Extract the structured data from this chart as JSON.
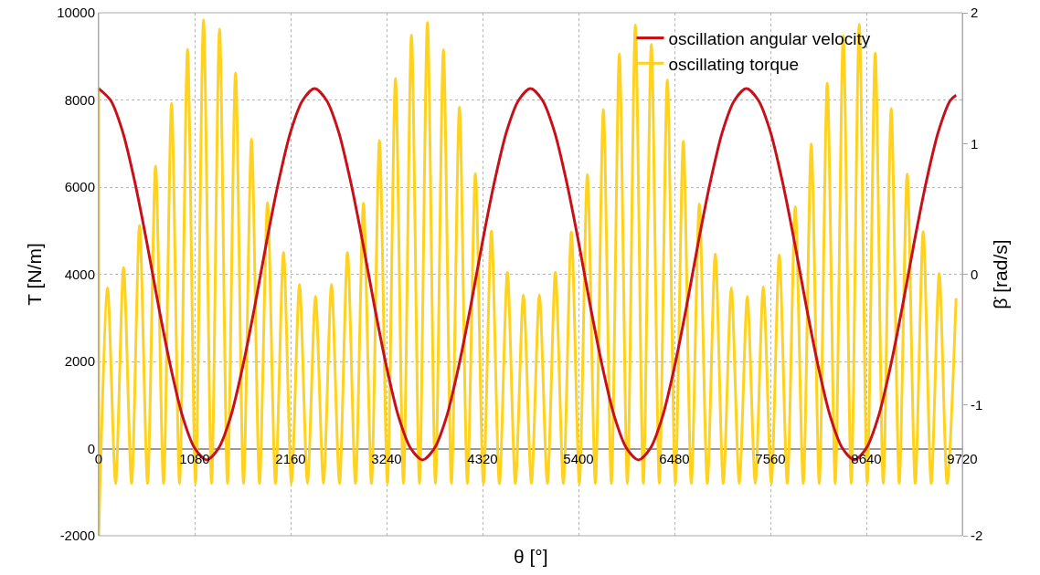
{
  "chart_data": {
    "type": "line",
    "xlabel": "θ [°]",
    "ylabel": "T [N/m]",
    "y2label": "β̇ [rad/s]",
    "xlim": [
      0,
      9720
    ],
    "xticks": [
      0,
      1080,
      2160,
      3240,
      4320,
      5400,
      6480,
      7560,
      8640,
      9720
    ],
    "ylim": [
      -2000,
      10000
    ],
    "yticks": [
      -2000,
      0,
      2000,
      4000,
      6000,
      8000,
      10000
    ],
    "y2lim": [
      -2,
      2
    ],
    "y2ticks": [
      -2,
      -1,
      0,
      1,
      2
    ],
    "grid": true,
    "legend": "top right",
    "marker": "none",
    "line_style": "solid",
    "series": [
      {
        "name": "oscillation angular velocity",
        "color": "#c8101a",
        "axis": "y2",
        "x": [
          0,
          135,
          270,
          405,
          540,
          675,
          810,
          945,
          1080,
          1215,
          1350,
          1485,
          1620,
          1755,
          1890,
          2025,
          2160,
          2295,
          2430,
          2565,
          2700,
          2835,
          2970,
          3105,
          3240,
          3375,
          3510,
          3645,
          3780,
          3915,
          4050,
          4185,
          4320,
          4455,
          4590,
          4725,
          4860,
          4995,
          5130,
          5265,
          5400,
          5535,
          5670,
          5805,
          5940,
          6075,
          6210,
          6345,
          6480,
          6615,
          6750,
          6885,
          7020,
          7155,
          7290,
          7425,
          7560,
          7695,
          7830,
          7965,
          8100,
          8235,
          8370,
          8505,
          8640,
          8775,
          8910,
          9045,
          9180,
          9315,
          9450,
          9585,
          9650
        ],
        "values": [
          1.42,
          1.33,
          1.09,
          0.71,
          0.25,
          -0.25,
          -0.71,
          -1.09,
          -1.33,
          -1.42,
          -1.33,
          -1.09,
          -0.71,
          -0.25,
          0.25,
          0.71,
          1.09,
          1.33,
          1.42,
          1.33,
          1.09,
          0.71,
          0.25,
          -0.25,
          -0.71,
          -1.09,
          -1.33,
          -1.42,
          -1.33,
          -1.09,
          -0.71,
          -0.25,
          0.25,
          0.71,
          1.09,
          1.33,
          1.42,
          1.33,
          1.09,
          0.71,
          0.25,
          -0.25,
          -0.71,
          -1.09,
          -1.33,
          -1.42,
          -1.33,
          -1.09,
          -0.71,
          -0.25,
          0.25,
          0.71,
          1.09,
          1.33,
          1.42,
          1.33,
          1.09,
          0.71,
          0.25,
          -0.25,
          -0.71,
          -1.09,
          -1.33,
          -1.42,
          -1.33,
          -1.09,
          -0.71,
          -0.25,
          0.25,
          0.71,
          1.09,
          1.33,
          1.37
        ]
      },
      {
        "name": "oscillating torque",
        "color": "#ffd21f",
        "x": [
          0,
          0,
          15,
          100,
          190,
          280,
          370,
          460,
          550,
          640,
          730,
          820,
          910,
          1000,
          1090,
          1180,
          1270,
          1360,
          1450,
          1540,
          1630,
          1720,
          1810,
          1900,
          1990,
          2080,
          2170,
          2260,
          2350,
          2440,
          2530,
          2620,
          2710,
          2800,
          2890,
          2980,
          3070,
          3160,
          3250,
          3340,
          3430,
          3520,
          3610,
          3700,
          3790,
          3880,
          3970,
          4060,
          4150,
          4240,
          4330,
          4420,
          4510,
          4600,
          4690,
          4780,
          4870,
          4960,
          5050,
          5140,
          5230,
          5320,
          5410,
          5500,
          5590,
          5680,
          5770,
          5860,
          5950,
          6040,
          6130,
          6220,
          6310,
          6400,
          6490,
          6580,
          6670,
          6760,
          6850,
          6940,
          7030,
          7120,
          7210,
          7300,
          7390,
          7480,
          7570,
          7660,
          7750,
          7840,
          7930,
          8020,
          8110,
          8200,
          8290,
          8380,
          8470,
          8560,
          8650,
          8740,
          8830,
          8920,
          9010,
          9100,
          9190,
          9280,
          9370,
          9460,
          9550,
          9650
        ],
        "values": [
          8300,
          -2000,
          -800,
          3690,
          -800,
          4150,
          -800,
          5120,
          -800,
          6480,
          -800,
          7920,
          -800,
          9160,
          -800,
          9840,
          -800,
          9630,
          -800,
          8620,
          -800,
          7100,
          -800,
          5640,
          -800,
          4500,
          -800,
          3770,
          -800,
          3500,
          -800,
          3770,
          -800,
          4500,
          -800,
          5630,
          -800,
          7070,
          -800,
          8490,
          -800,
          9490,
          -800,
          9780,
          -800,
          9150,
          -800,
          7830,
          -800,
          6310,
          -800,
          4990,
          -800,
          4040,
          -800,
          3530,
          -800,
          3530,
          -800,
          4040,
          -800,
          4970,
          -800,
          6290,
          -800,
          7780,
          -800,
          9060,
          -800,
          9720,
          -800,
          9280,
          -800,
          8460,
          -800,
          7050,
          -800,
          5610,
          -800,
          4460,
          -800,
          3690,
          -800,
          3490,
          -800,
          3710,
          -800,
          4440,
          -800,
          5550,
          -800,
          6990,
          -800,
          8390,
          -800,
          9470,
          -800,
          9740,
          -800,
          9080,
          -800,
          7800,
          -800,
          6300,
          -800,
          4980,
          -800,
          4020,
          -800,
          3450
        ]
      }
    ]
  }
}
